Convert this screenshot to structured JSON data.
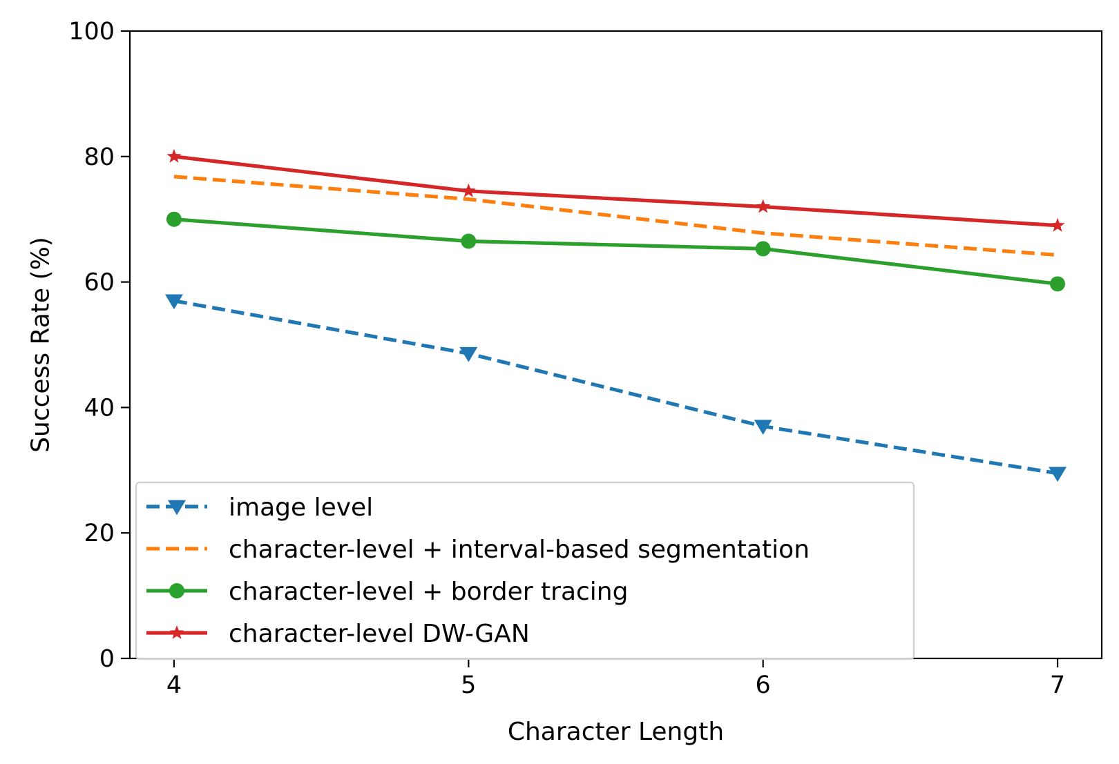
{
  "chart_data": {
    "type": "line",
    "title": "",
    "xlabel": "Character Length",
    "ylabel": "Success Rate (%)",
    "x": [
      4,
      5,
      6,
      7
    ],
    "x_tick_labels": [
      "4",
      "5",
      "6",
      "7"
    ],
    "y_ticks": [
      0,
      20,
      40,
      60,
      80,
      100
    ],
    "y_tick_labels": [
      "0",
      "20",
      "40",
      "60",
      "80",
      "100"
    ],
    "xlim": [
      3.85,
      7.15
    ],
    "ylim": [
      0,
      100
    ],
    "grid": false,
    "legend_position": "lower-left",
    "series": [
      {
        "name": "image level",
        "values": [
          57.0,
          48.6,
          37.0,
          29.5
        ],
        "color": "#1f77b4",
        "style": "dashed",
        "marker": "triangle-down"
      },
      {
        "name": "character-level + interval-based segmentation",
        "values": [
          76.8,
          73.2,
          67.8,
          64.3
        ],
        "color": "#ff7f0e",
        "style": "dashed",
        "marker": "none"
      },
      {
        "name": "character-level + border tracing",
        "values": [
          70.0,
          66.5,
          65.3,
          59.7
        ],
        "color": "#2ca02c",
        "style": "solid",
        "marker": "circle"
      },
      {
        "name": "character-level DW-GAN",
        "values": [
          80.0,
          74.5,
          72.0,
          69.0
        ],
        "color": "#d62728",
        "style": "solid",
        "marker": "star"
      }
    ]
  }
}
